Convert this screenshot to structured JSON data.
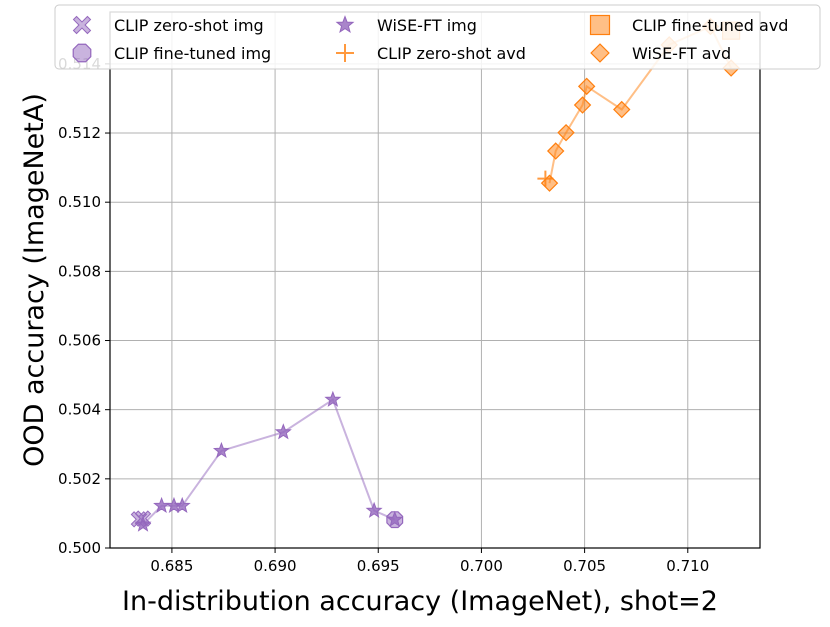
{
  "chart_data": {
    "type": "scatter",
    "xlabel": "In-distribution accuracy (ImageNet), shot=2",
    "ylabel": "OOD accuracy (ImageNetA)",
    "xlim": [
      0.682,
      0.7135
    ],
    "ylim": [
      0.5,
      0.5155
    ],
    "x_ticks": [
      0.685,
      0.69,
      0.695,
      0.7,
      0.705,
      0.71
    ],
    "x_tick_labels": [
      "0.685",
      "0.690",
      "0.695",
      "0.700",
      "0.705",
      "0.710"
    ],
    "y_ticks": [
      0.5,
      0.502,
      0.504,
      0.506,
      0.508,
      0.51,
      0.512,
      0.514
    ],
    "y_tick_labels": [
      "0.500",
      "0.502",
      "0.504",
      "0.506",
      "0.508",
      "0.510",
      "0.512",
      "0.514"
    ],
    "grid": true,
    "legend_position": "top",
    "colors": {
      "img": "#9467bd",
      "avd": "#ff7f0e"
    },
    "series": [
      {
        "name": "CLIP zero-shot img",
        "marker": "x-filled",
        "color": "#9467bd",
        "line": false,
        "points": [
          [
            0.6834,
            0.50083
          ],
          [
            0.6836,
            0.50085
          ]
        ]
      },
      {
        "name": "CLIP fine-tuned img",
        "marker": "octagon",
        "color": "#9467bd",
        "line": false,
        "points": [
          [
            0.6958,
            0.50082
          ]
        ]
      },
      {
        "name": "WiSE-FT img",
        "marker": "star",
        "color": "#9467bd",
        "line": true,
        "points": [
          [
            0.6836,
            0.50068
          ],
          [
            0.6845,
            0.50122
          ],
          [
            0.6851,
            0.50122
          ],
          [
            0.6855,
            0.50122
          ],
          [
            0.6874,
            0.50281
          ],
          [
            0.6904,
            0.50335
          ],
          [
            0.6928,
            0.50429
          ],
          [
            0.6948,
            0.50108
          ],
          [
            0.6958,
            0.50082
          ]
        ]
      },
      {
        "name": "CLIP zero-shot avd",
        "marker": "plus",
        "color": "#ff7f0e",
        "line": false,
        "points": [
          [
            0.7031,
            0.51068
          ]
        ]
      },
      {
        "name": "CLIP fine-tuned avd",
        "marker": "square",
        "color": "#ff7f0e",
        "line": false,
        "points": [
          [
            0.7121,
            0.51496
          ]
        ]
      },
      {
        "name": "WiSE-FT avd",
        "marker": "diamond",
        "color": "#ff7f0e",
        "line": true,
        "points": [
          [
            0.7033,
            0.51055
          ],
          [
            0.7036,
            0.51148
          ],
          [
            0.7041,
            0.51201
          ],
          [
            0.7049,
            0.51281
          ],
          [
            0.7051,
            0.51335
          ],
          [
            0.7068,
            0.51268
          ],
          [
            0.7091,
            0.51455
          ],
          [
            0.7111,
            0.51508
          ],
          [
            0.7121,
            0.51388
          ]
        ]
      }
    ]
  }
}
